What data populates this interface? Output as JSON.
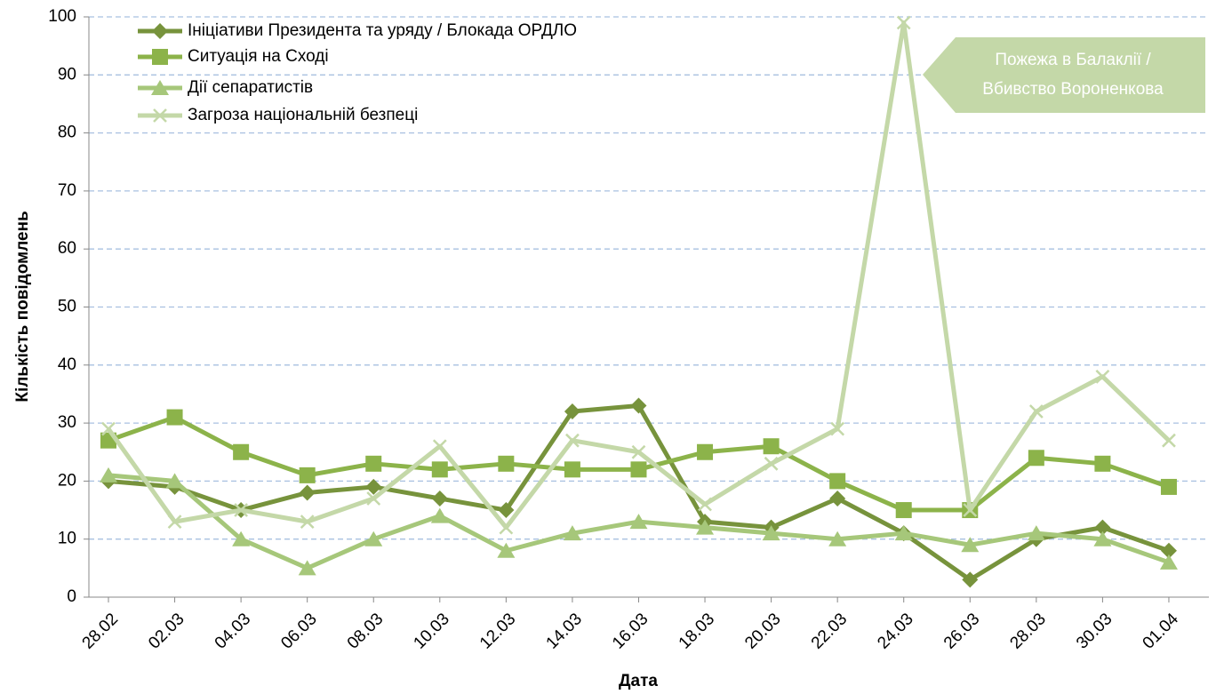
{
  "chart_data": {
    "type": "line",
    "y_label": "Кількість повідомлень",
    "x_label": "Дата",
    "annotation": [
      "Пожежа в Балаклії /",
      "Вбивство Вороненкова"
    ],
    "categories": [
      "28.02",
      "02.03",
      "04.03",
      "06.03",
      "08.03",
      "10.03",
      "12.03",
      "14.03",
      "16.03",
      "18.03",
      "20.03",
      "22.03",
      "24.03",
      "26.03",
      "28.03",
      "30.03",
      "01.04"
    ],
    "series": [
      {
        "name": "Ініціативи Президента та уряду / Блокада ОРДЛО",
        "color": "#77933c",
        "marker": "diamond",
        "values": [
          20,
          19,
          15,
          18,
          19,
          17,
          15,
          32,
          33,
          13,
          12,
          17,
          11,
          3,
          10,
          12,
          8
        ]
      },
      {
        "name": "Ситуація на Сході",
        "color": "#8cb34a",
        "marker": "square",
        "values": [
          27,
          31,
          25,
          21,
          23,
          22,
          23,
          22,
          22,
          25,
          26,
          20,
          15,
          15,
          24,
          23,
          19
        ]
      },
      {
        "name": "Дії сепаратистів",
        "color": "#a6c77a",
        "marker": "triangle",
        "values": [
          21,
          20,
          10,
          5,
          10,
          14,
          8,
          11,
          13,
          12,
          11,
          10,
          11,
          9,
          11,
          10,
          6
        ]
      },
      {
        "name": "Загроза національній безпеці",
        "color": "#c4d8a8",
        "marker": "x",
        "values": [
          29,
          13,
          15,
          13,
          17,
          26,
          12,
          27,
          25,
          16,
          23,
          29,
          99,
          15,
          32,
          38,
          27
        ]
      }
    ],
    "ylim": [
      0,
      100
    ],
    "yticks": [
      0,
      10,
      20,
      30,
      40,
      50,
      60,
      70,
      80,
      90,
      100
    ],
    "grid": true
  }
}
